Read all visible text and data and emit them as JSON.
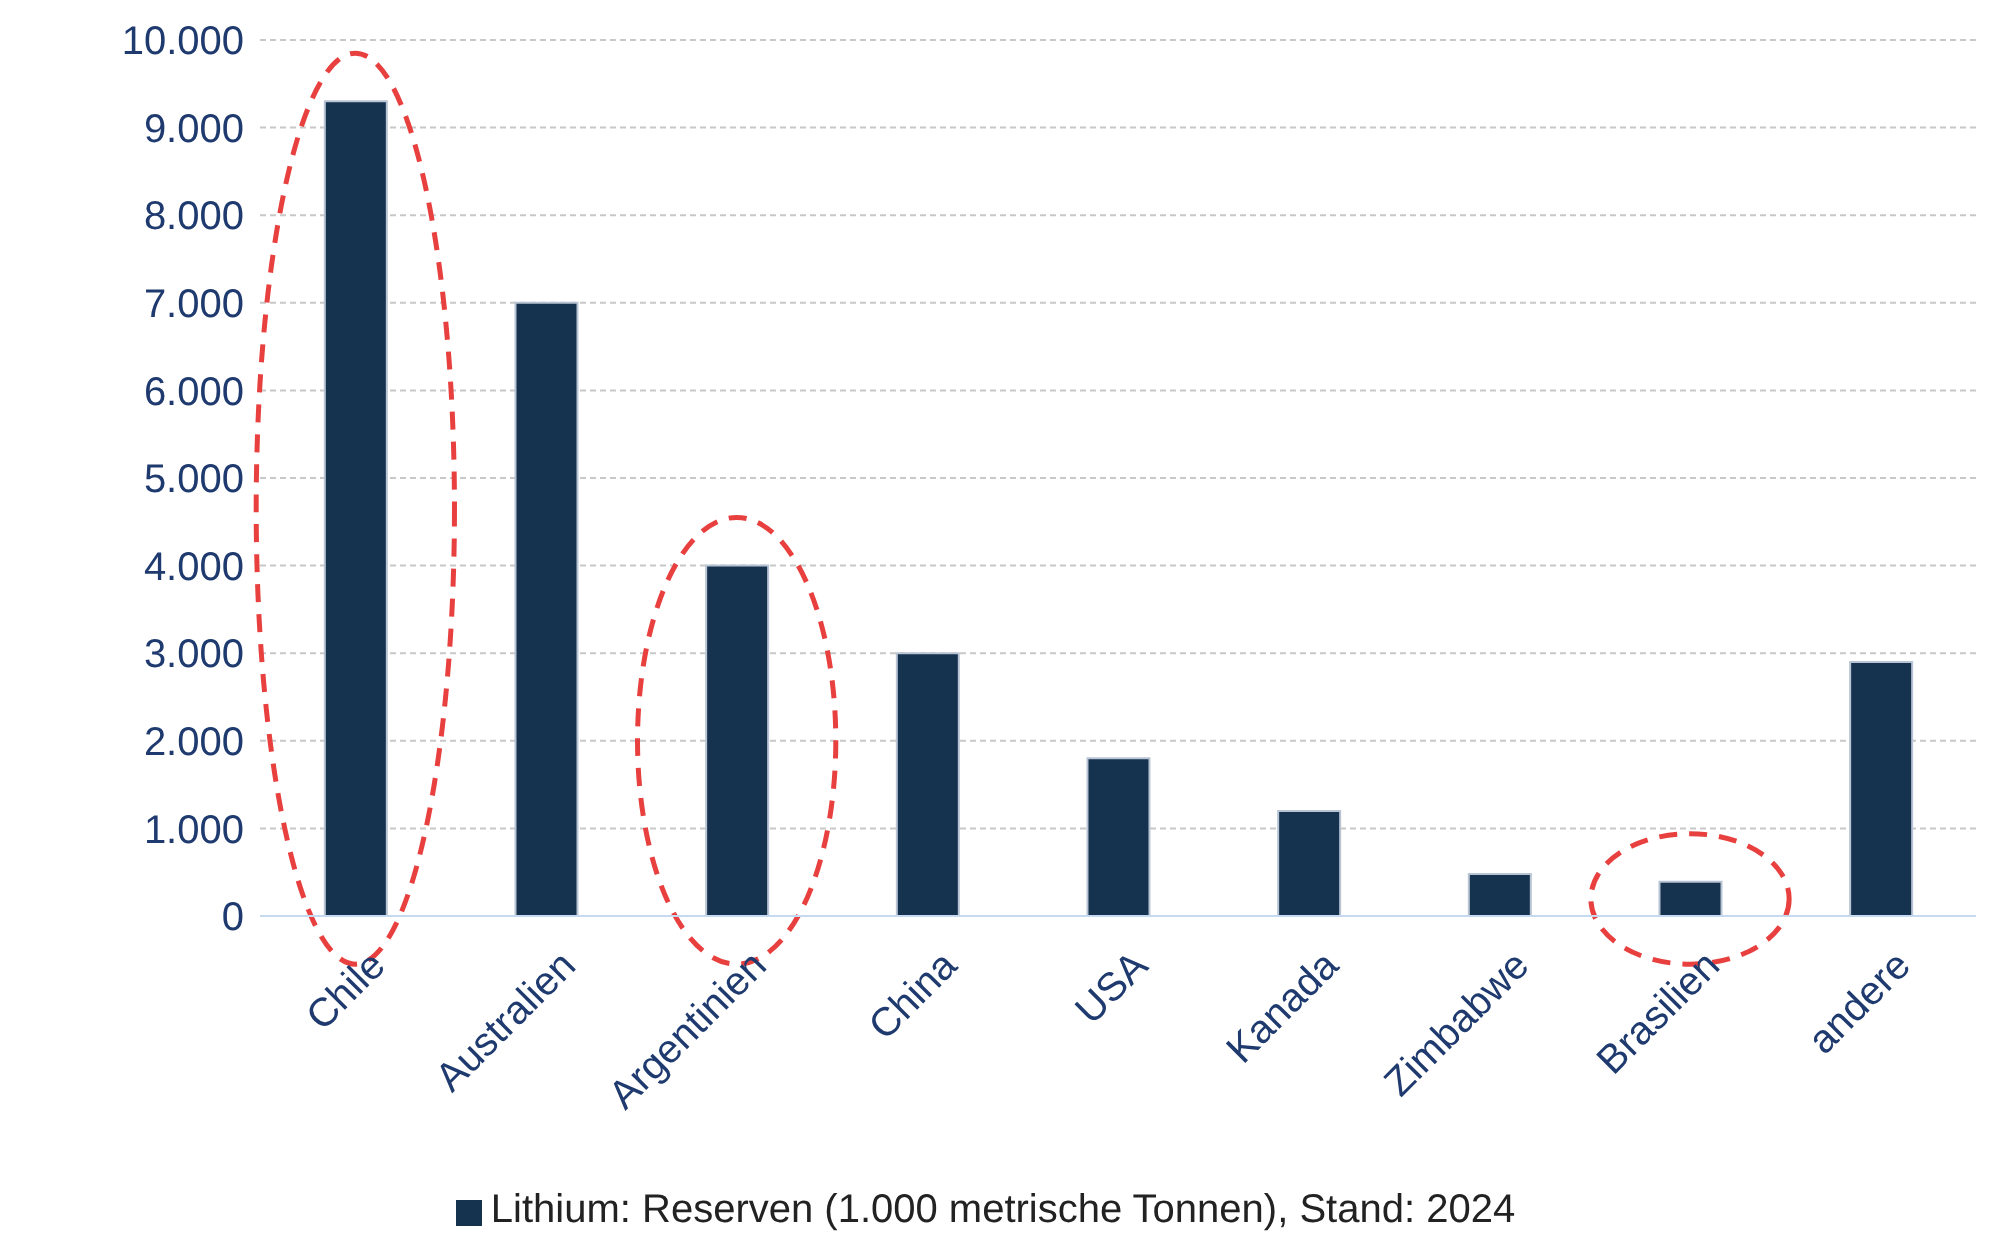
{
  "chart_data": {
    "type": "bar",
    "categories": [
      "Chile",
      "Australien",
      "Argentinien",
      "China",
      "USA",
      "Kanada",
      "Zimbabwe",
      "Brasilien",
      "andere"
    ],
    "series": [
      {
        "name": "Lithium: Reserven (1.000 metrische Tonnen), Stand: 2024",
        "color": "#15324f",
        "values": [
          9300,
          7000,
          4000,
          3000,
          1800,
          1200,
          480,
          390,
          2900
        ]
      }
    ],
    "ylim": [
      0,
      10000
    ],
    "yticks": [
      {
        "value": 0,
        "label": "0"
      },
      {
        "value": 1000,
        "label": "1.000"
      },
      {
        "value": 2000,
        "label": "2.000"
      },
      {
        "value": 3000,
        "label": "3.000"
      },
      {
        "value": 4000,
        "label": "4.000"
      },
      {
        "value": 5000,
        "label": "5.000"
      },
      {
        "value": 6000,
        "label": "6.000"
      },
      {
        "value": 7000,
        "label": "7.000"
      },
      {
        "value": 8000,
        "label": "8.000"
      },
      {
        "value": 9000,
        "label": "9.000"
      },
      {
        "value": 10000,
        "label": "10.000"
      }
    ],
    "grid": "y",
    "legend": "bottom"
  }
}
